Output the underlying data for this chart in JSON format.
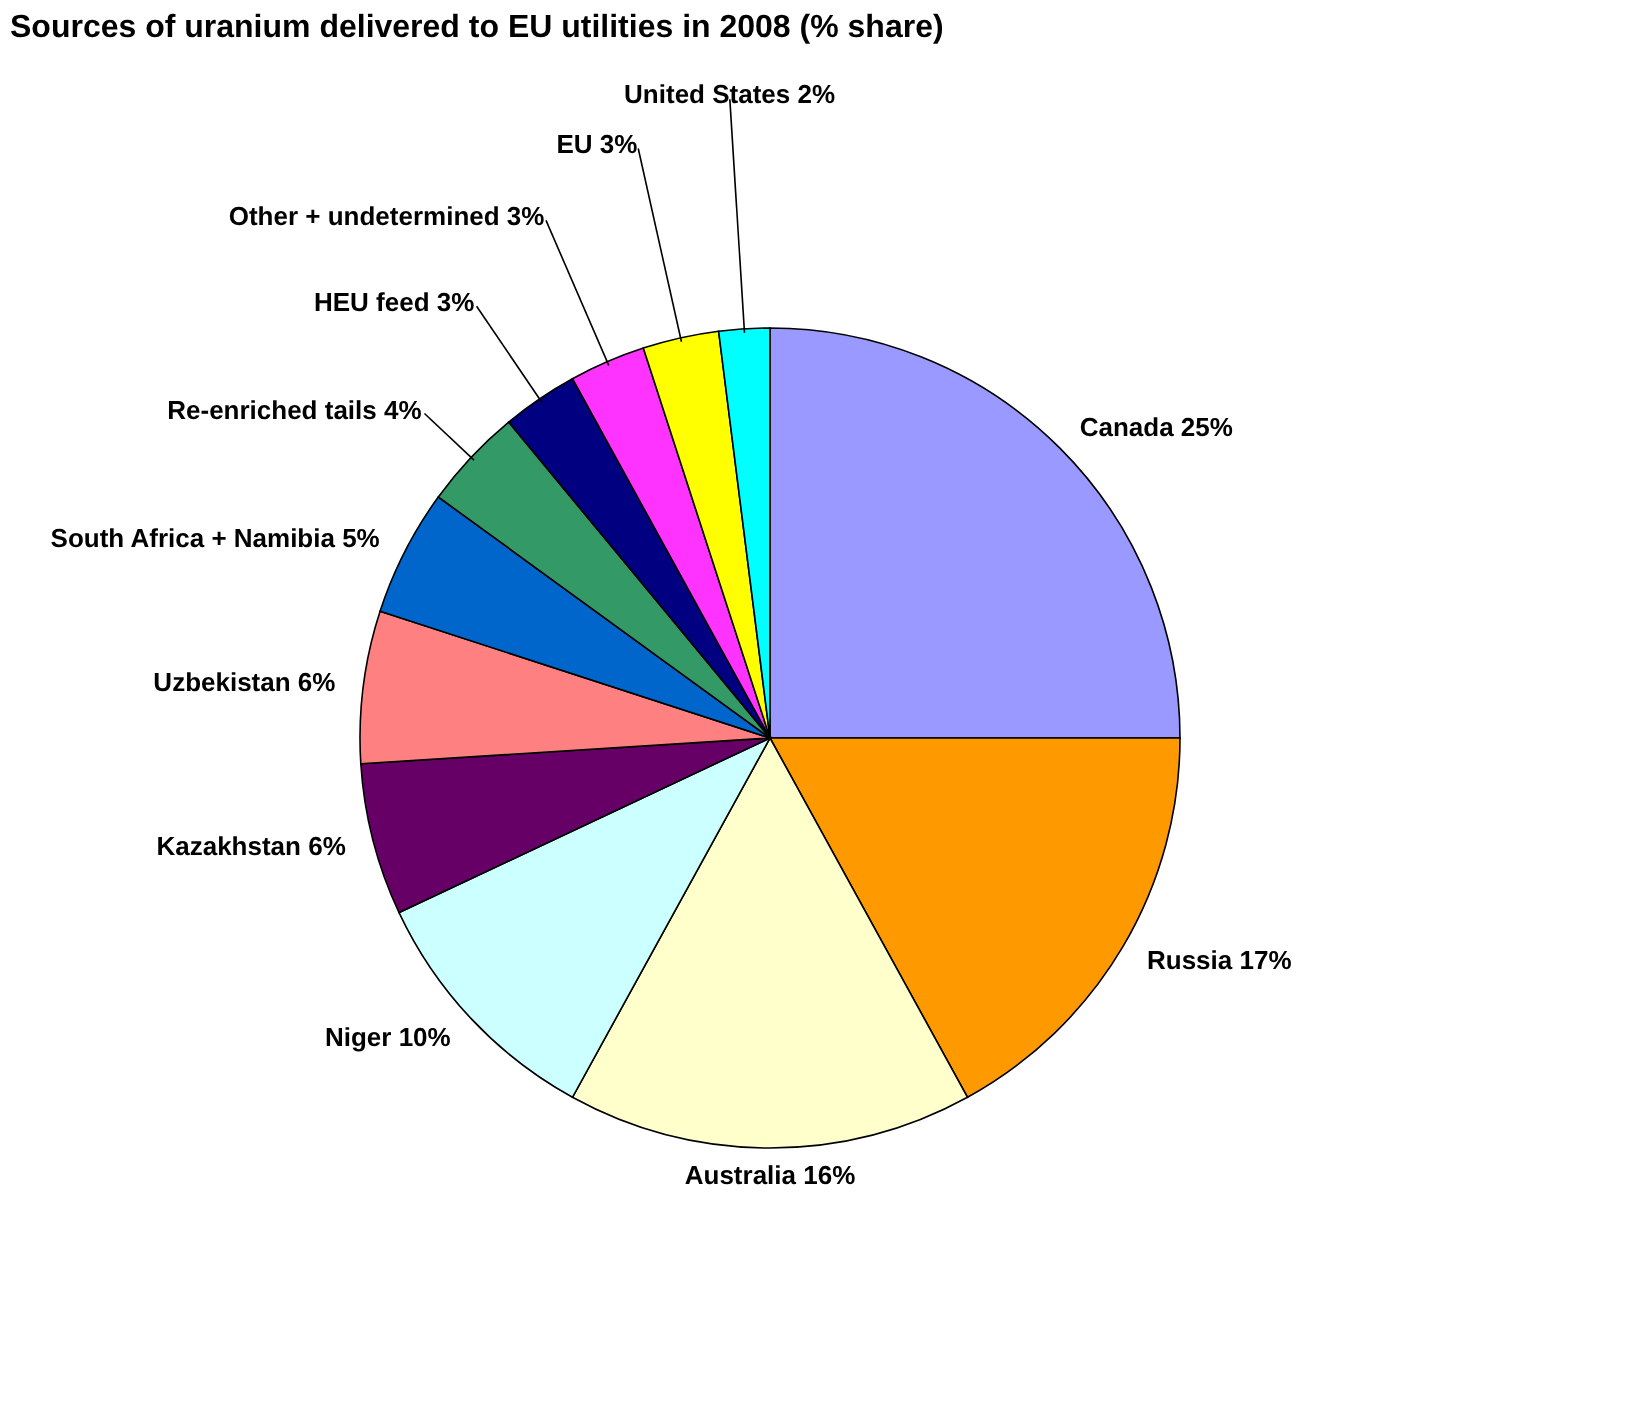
{
  "chart_data": {
    "type": "pie",
    "title": "Sources of uranium delivered to EU utilities in 2008 (% share)",
    "categories": [
      "Canada",
      "Russia",
      "Australia",
      "Niger",
      "Kazakhstan",
      "Uzbekistan",
      "South Africa + Namibia",
      "Re-enriched tails",
      "HEU feed",
      "Other + undetermined",
      "EU",
      "United States"
    ],
    "values": [
      25,
      17,
      16,
      10,
      6,
      6,
      5,
      4,
      3,
      3,
      3,
      2
    ],
    "value_labels": [
      "25%",
      "17%",
      "16%",
      "10%",
      "6%",
      "6%",
      "5%",
      "4%",
      "3%",
      "3%",
      "3%",
      "2%"
    ],
    "colors": [
      "#9999ff",
      "#ff9900",
      "#ffffcc",
      "#ccffff",
      "#660066",
      "#ff8080",
      "#0066cc",
      "#339966",
      "#000080",
      "#ff33ff",
      "#ffff00",
      "#00ffff"
    ]
  }
}
